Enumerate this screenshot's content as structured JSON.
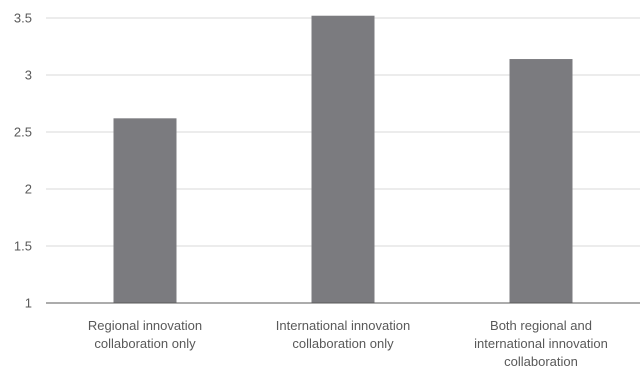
{
  "chart_data": {
    "type": "bar",
    "title": "",
    "xlabel": "",
    "ylabel": "",
    "ylim": [
      1,
      3.5
    ],
    "yticks": [
      "1",
      "1.5",
      "2",
      "2.5",
      "3",
      "3.5"
    ],
    "grid": true,
    "bar_color": "#7b7b7f",
    "categories": [
      [
        "Regional innovation",
        "collaboration only"
      ],
      [
        "International innovation",
        "collaboration only"
      ],
      [
        "Both regional and",
        "international innovation",
        "collaboration"
      ]
    ],
    "values": [
      2.62,
      3.52,
      3.14
    ]
  }
}
